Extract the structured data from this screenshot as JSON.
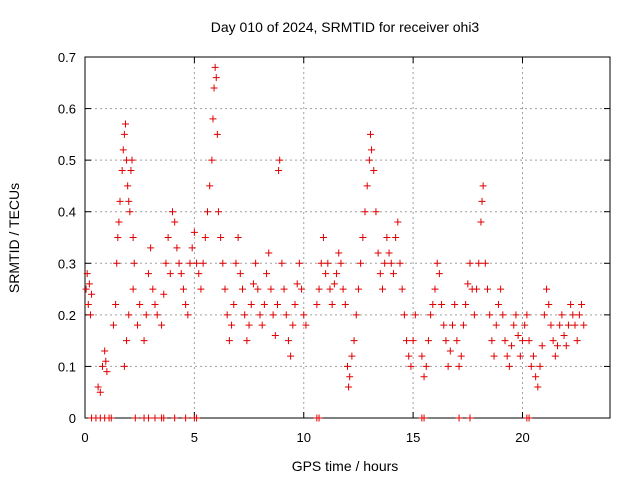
{
  "chart_data": {
    "type": "scatter",
    "title": "Day 010 of 2024, SRMTID for receiver ohi3",
    "xlabel": "GPS time / hours",
    "ylabel": "SRMTID / TECUs",
    "xlim": [
      0,
      24
    ],
    "ylim": [
      0,
      0.7
    ],
    "x_ticks": [
      "0",
      "5",
      "10",
      "15",
      "20"
    ],
    "y_ticks": [
      "0",
      "0.1",
      "0.2",
      "0.3",
      "0.4",
      "0.5",
      "0.6",
      "0.7"
    ],
    "grid": true,
    "marker": "plus",
    "color": "#e00000",
    "series": [
      {
        "name": "SRMTID",
        "points": [
          [
            0.05,
            0.25
          ],
          [
            0.1,
            0.28
          ],
          [
            0.15,
            0.22
          ],
          [
            0.2,
            0.26
          ],
          [
            0.25,
            0.2
          ],
          [
            0.3,
            0.24
          ],
          [
            0.6,
            0.06
          ],
          [
            0.7,
            0.05
          ],
          [
            0.8,
            0.1
          ],
          [
            0.9,
            0.13
          ],
          [
            0.95,
            0.11
          ],
          [
            1.0,
            0.09
          ],
          [
            1.3,
            0.18
          ],
          [
            1.4,
            0.22
          ],
          [
            1.45,
            0.3
          ],
          [
            1.5,
            0.35
          ],
          [
            1.55,
            0.38
          ],
          [
            1.6,
            0.42
          ],
          [
            1.7,
            0.48
          ],
          [
            1.75,
            0.52
          ],
          [
            1.8,
            0.55
          ],
          [
            1.85,
            0.57
          ],
          [
            1.9,
            0.5
          ],
          [
            1.95,
            0.45
          ],
          [
            2.0,
            0.42
          ],
          [
            2.05,
            0.4
          ],
          [
            2.1,
            0.48
          ],
          [
            2.15,
            0.5
          ],
          [
            2.2,
            0.35
          ],
          [
            2.25,
            0.3
          ],
          [
            1.8,
            0.1
          ],
          [
            1.9,
            0.15
          ],
          [
            2.0,
            0.2
          ],
          [
            2.2,
            0.25
          ],
          [
            2.4,
            0.18
          ],
          [
            2.5,
            0.22
          ],
          [
            2.7,
            0.15
          ],
          [
            2.8,
            0.2
          ],
          [
            2.9,
            0.28
          ],
          [
            3.0,
            0.33
          ],
          [
            3.1,
            0.25
          ],
          [
            3.2,
            0.22
          ],
          [
            3.3,
            0.2
          ],
          [
            3.5,
            0.18
          ],
          [
            3.6,
            0.24
          ],
          [
            3.7,
            0.3
          ],
          [
            3.8,
            0.35
          ],
          [
            3.9,
            0.28
          ],
          [
            4.0,
            0.4
          ],
          [
            4.1,
            0.38
          ],
          [
            4.2,
            0.33
          ],
          [
            4.3,
            0.3
          ],
          [
            4.4,
            0.28
          ],
          [
            4.5,
            0.25
          ],
          [
            4.6,
            0.22
          ],
          [
            4.7,
            0.2
          ],
          [
            4.8,
            0.3
          ],
          [
            4.9,
            0.33
          ],
          [
            5.0,
            0.36
          ],
          [
            5.1,
            0.3
          ],
          [
            5.2,
            0.28
          ],
          [
            5.3,
            0.25
          ],
          [
            5.4,
            0.3
          ],
          [
            5.5,
            0.35
          ],
          [
            5.6,
            0.4
          ],
          [
            5.7,
            0.45
          ],
          [
            5.8,
            0.5
          ],
          [
            5.85,
            0.58
          ],
          [
            5.9,
            0.64
          ],
          [
            5.95,
            0.68
          ],
          [
            6.0,
            0.66
          ],
          [
            6.05,
            0.55
          ],
          [
            6.1,
            0.4
          ],
          [
            6.2,
            0.35
          ],
          [
            6.3,
            0.3
          ],
          [
            6.4,
            0.25
          ],
          [
            6.5,
            0.2
          ],
          [
            6.6,
            0.15
          ],
          [
            6.7,
            0.18
          ],
          [
            6.8,
            0.22
          ],
          [
            6.9,
            0.3
          ],
          [
            7.0,
            0.35
          ],
          [
            7.1,
            0.28
          ],
          [
            7.2,
            0.25
          ],
          [
            7.3,
            0.2
          ],
          [
            7.4,
            0.15
          ],
          [
            7.5,
            0.18
          ],
          [
            7.6,
            0.22
          ],
          [
            7.7,
            0.26
          ],
          [
            7.8,
            0.3
          ],
          [
            7.9,
            0.25
          ],
          [
            8.0,
            0.2
          ],
          [
            8.1,
            0.18
          ],
          [
            8.2,
            0.22
          ],
          [
            8.3,
            0.28
          ],
          [
            8.4,
            0.32
          ],
          [
            8.5,
            0.25
          ],
          [
            8.6,
            0.2
          ],
          [
            8.7,
            0.16
          ],
          [
            8.8,
            0.22
          ],
          [
            8.85,
            0.48
          ],
          [
            8.9,
            0.5
          ],
          [
            9.0,
            0.3
          ],
          [
            9.1,
            0.25
          ],
          [
            9.2,
            0.2
          ],
          [
            9.3,
            0.15
          ],
          [
            9.4,
            0.12
          ],
          [
            9.5,
            0.18
          ],
          [
            9.6,
            0.22
          ],
          [
            9.7,
            0.26
          ],
          [
            9.8,
            0.3
          ],
          [
            9.9,
            0.25
          ],
          [
            10.0,
            0.2
          ],
          [
            10.1,
            0.18
          ],
          [
            10.6,
            0.22
          ],
          [
            10.7,
            0.25
          ],
          [
            10.8,
            0.3
          ],
          [
            10.9,
            0.35
          ],
          [
            11.0,
            0.28
          ],
          [
            11.1,
            0.3
          ],
          [
            11.2,
            0.25
          ],
          [
            11.3,
            0.22
          ],
          [
            11.4,
            0.26
          ],
          [
            11.5,
            0.28
          ],
          [
            11.6,
            0.32
          ],
          [
            11.7,
            0.3
          ],
          [
            11.8,
            0.25
          ],
          [
            11.9,
            0.22
          ],
          [
            12.0,
            0.1
          ],
          [
            12.05,
            0.06
          ],
          [
            12.1,
            0.08
          ],
          [
            12.2,
            0.12
          ],
          [
            12.3,
            0.15
          ],
          [
            12.4,
            0.2
          ],
          [
            12.5,
            0.25
          ],
          [
            12.6,
            0.3
          ],
          [
            12.7,
            0.35
          ],
          [
            12.8,
            0.4
          ],
          [
            12.9,
            0.45
          ],
          [
            13.0,
            0.5
          ],
          [
            13.05,
            0.55
          ],
          [
            13.1,
            0.52
          ],
          [
            13.2,
            0.48
          ],
          [
            13.3,
            0.4
          ],
          [
            13.4,
            0.32
          ],
          [
            13.5,
            0.28
          ],
          [
            13.6,
            0.25
          ],
          [
            13.7,
            0.3
          ],
          [
            13.8,
            0.35
          ],
          [
            13.9,
            0.32
          ],
          [
            14.0,
            0.3
          ],
          [
            14.1,
            0.28
          ],
          [
            14.2,
            0.35
          ],
          [
            14.3,
            0.38
          ],
          [
            14.4,
            0.3
          ],
          [
            14.5,
            0.25
          ],
          [
            14.6,
            0.2
          ],
          [
            14.7,
            0.15
          ],
          [
            14.8,
            0.12
          ],
          [
            14.9,
            0.1
          ],
          [
            15.0,
            0.15
          ],
          [
            15.1,
            0.2
          ],
          [
            15.4,
            0.12
          ],
          [
            15.5,
            0.08
          ],
          [
            15.6,
            0.1
          ],
          [
            15.7,
            0.15
          ],
          [
            15.8,
            0.2
          ],
          [
            15.9,
            0.22
          ],
          [
            16.0,
            0.25
          ],
          [
            16.1,
            0.3
          ],
          [
            16.2,
            0.28
          ],
          [
            16.3,
            0.22
          ],
          [
            16.4,
            0.18
          ],
          [
            16.5,
            0.15
          ],
          [
            16.6,
            0.1
          ],
          [
            16.7,
            0.13
          ],
          [
            16.8,
            0.18
          ],
          [
            16.9,
            0.22
          ],
          [
            17.0,
            0.15
          ],
          [
            17.1,
            0.1
          ],
          [
            17.2,
            0.12
          ],
          [
            17.3,
            0.18
          ],
          [
            17.4,
            0.22
          ],
          [
            17.5,
            0.26
          ],
          [
            17.6,
            0.3
          ],
          [
            17.7,
            0.25
          ],
          [
            17.8,
            0.2
          ],
          [
            17.9,
            0.25
          ],
          [
            18.0,
            0.3
          ],
          [
            18.1,
            0.38
          ],
          [
            18.15,
            0.42
          ],
          [
            18.2,
            0.45
          ],
          [
            18.3,
            0.3
          ],
          [
            18.4,
            0.25
          ],
          [
            18.5,
            0.2
          ],
          [
            18.6,
            0.15
          ],
          [
            18.7,
            0.12
          ],
          [
            18.8,
            0.18
          ],
          [
            18.9,
            0.22
          ],
          [
            19.0,
            0.25
          ],
          [
            19.1,
            0.2
          ],
          [
            19.2,
            0.15
          ],
          [
            19.3,
            0.12
          ],
          [
            19.4,
            0.1
          ],
          [
            19.5,
            0.14
          ],
          [
            19.6,
            0.18
          ],
          [
            19.7,
            0.2
          ],
          [
            19.8,
            0.16
          ],
          [
            19.9,
            0.12
          ],
          [
            20.0,
            0.15
          ],
          [
            20.1,
            0.18
          ],
          [
            20.2,
            0.2
          ],
          [
            20.3,
            0.15
          ],
          [
            20.4,
            0.1
          ],
          [
            20.5,
            0.12
          ],
          [
            20.6,
            0.08
          ],
          [
            20.7,
            0.06
          ],
          [
            20.8,
            0.1
          ],
          [
            20.9,
            0.14
          ],
          [
            21.0,
            0.2
          ],
          [
            21.1,
            0.25
          ],
          [
            21.2,
            0.22
          ],
          [
            21.3,
            0.18
          ],
          [
            21.4,
            0.15
          ],
          [
            21.5,
            0.12
          ],
          [
            21.6,
            0.14
          ],
          [
            21.7,
            0.18
          ],
          [
            21.8,
            0.2
          ],
          [
            21.9,
            0.16
          ],
          [
            22.0,
            0.14
          ],
          [
            22.1,
            0.18
          ],
          [
            22.2,
            0.22
          ],
          [
            22.3,
            0.2
          ],
          [
            22.4,
            0.18
          ],
          [
            22.5,
            0.15
          ],
          [
            22.6,
            0.2
          ],
          [
            22.7,
            0.22
          ],
          [
            22.8,
            0.18
          ],
          [
            0.3,
            0.0
          ],
          [
            0.5,
            0.0
          ],
          [
            0.7,
            0.0
          ],
          [
            0.9,
            0.0
          ],
          [
            1.1,
            0.0
          ],
          [
            1.2,
            0.0
          ],
          [
            2.3,
            0.0
          ],
          [
            2.7,
            0.0
          ],
          [
            2.9,
            0.0
          ],
          [
            3.2,
            0.0
          ],
          [
            3.5,
            0.0
          ],
          [
            3.6,
            0.0
          ],
          [
            4.1,
            0.0
          ],
          [
            4.6,
            0.0
          ],
          [
            5.0,
            0.0
          ],
          [
            5.1,
            0.0
          ],
          [
            10.6,
            0.0
          ],
          [
            10.7,
            0.0
          ],
          [
            15.4,
            0.0
          ],
          [
            15.5,
            0.0
          ],
          [
            17.1,
            0.0
          ],
          [
            17.6,
            0.0
          ],
          [
            20.2,
            0.0
          ],
          [
            20.3,
            0.0
          ]
        ]
      }
    ]
  }
}
